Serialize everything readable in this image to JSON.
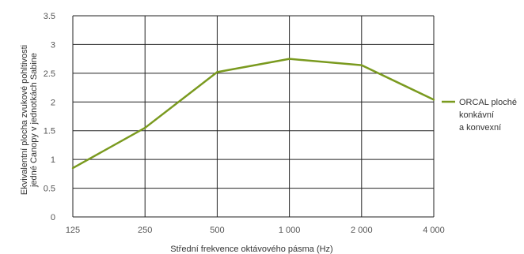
{
  "chart_data": {
    "type": "line",
    "categories": [
      "125",
      "250",
      "500",
      "1 000",
      "2 000",
      "4 000"
    ],
    "series": [
      {
        "name": "ORCAL ploché konkávní a konvexní",
        "name_lines": [
          "ORCAL ploché",
          "konkávní",
          "a konvexní"
        ],
        "values": [
          0.85,
          1.55,
          2.52,
          2.75,
          2.64,
          2.04
        ]
      }
    ],
    "ylim": [
      0,
      3.5
    ],
    "yticks": [
      "0",
      "0.5",
      "1",
      "1.5",
      "2",
      "2.5",
      "3",
      "3.5"
    ],
    "xlabel": "Střední frekvence oktávového pásma (Hz)",
    "ylabel_lines": [
      "Ekvivalentní plocha zvukové pohltivosti",
      "jedné Canopy v jednotkách Sabine"
    ],
    "grid": true,
    "legend": "right",
    "colors": {
      "line": "#7a9a1f",
      "grid": "#222222",
      "frame": "#222222"
    }
  }
}
